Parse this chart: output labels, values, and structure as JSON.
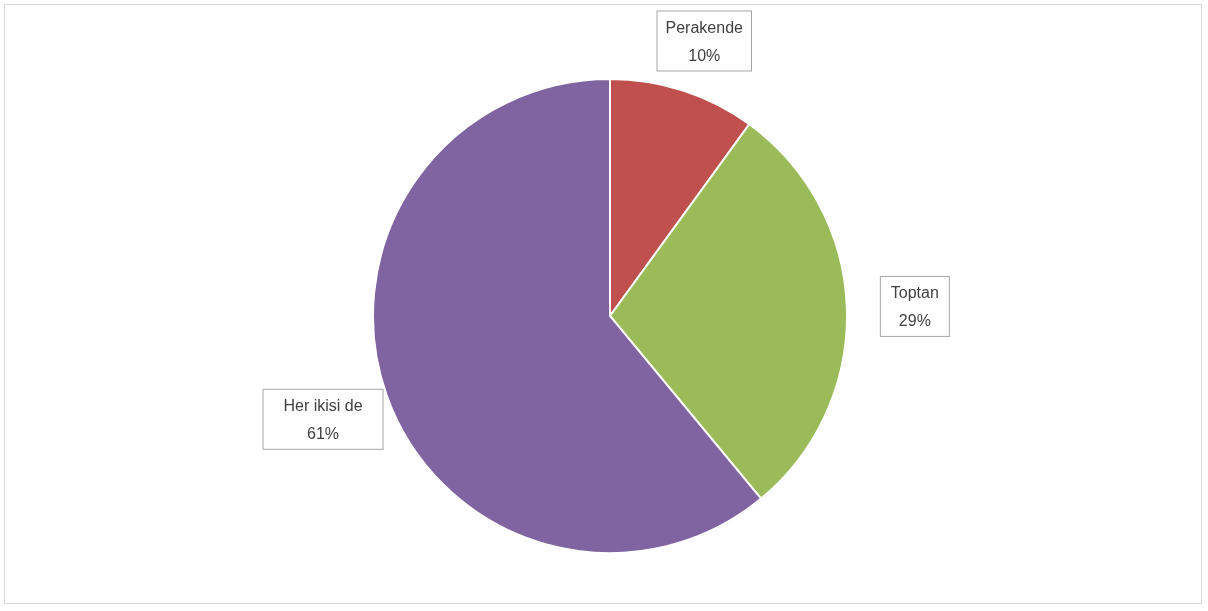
{
  "chart_data": {
    "type": "pie",
    "categories": [
      "Perakende",
      "Toptan",
      "Her ikisi de"
    ],
    "values": [
      10,
      29,
      61
    ],
    "colors": [
      "#c0504d",
      "#9bbb59",
      "#8064a2"
    ],
    "value_labels": [
      "10%",
      "29%",
      "61%"
    ]
  }
}
